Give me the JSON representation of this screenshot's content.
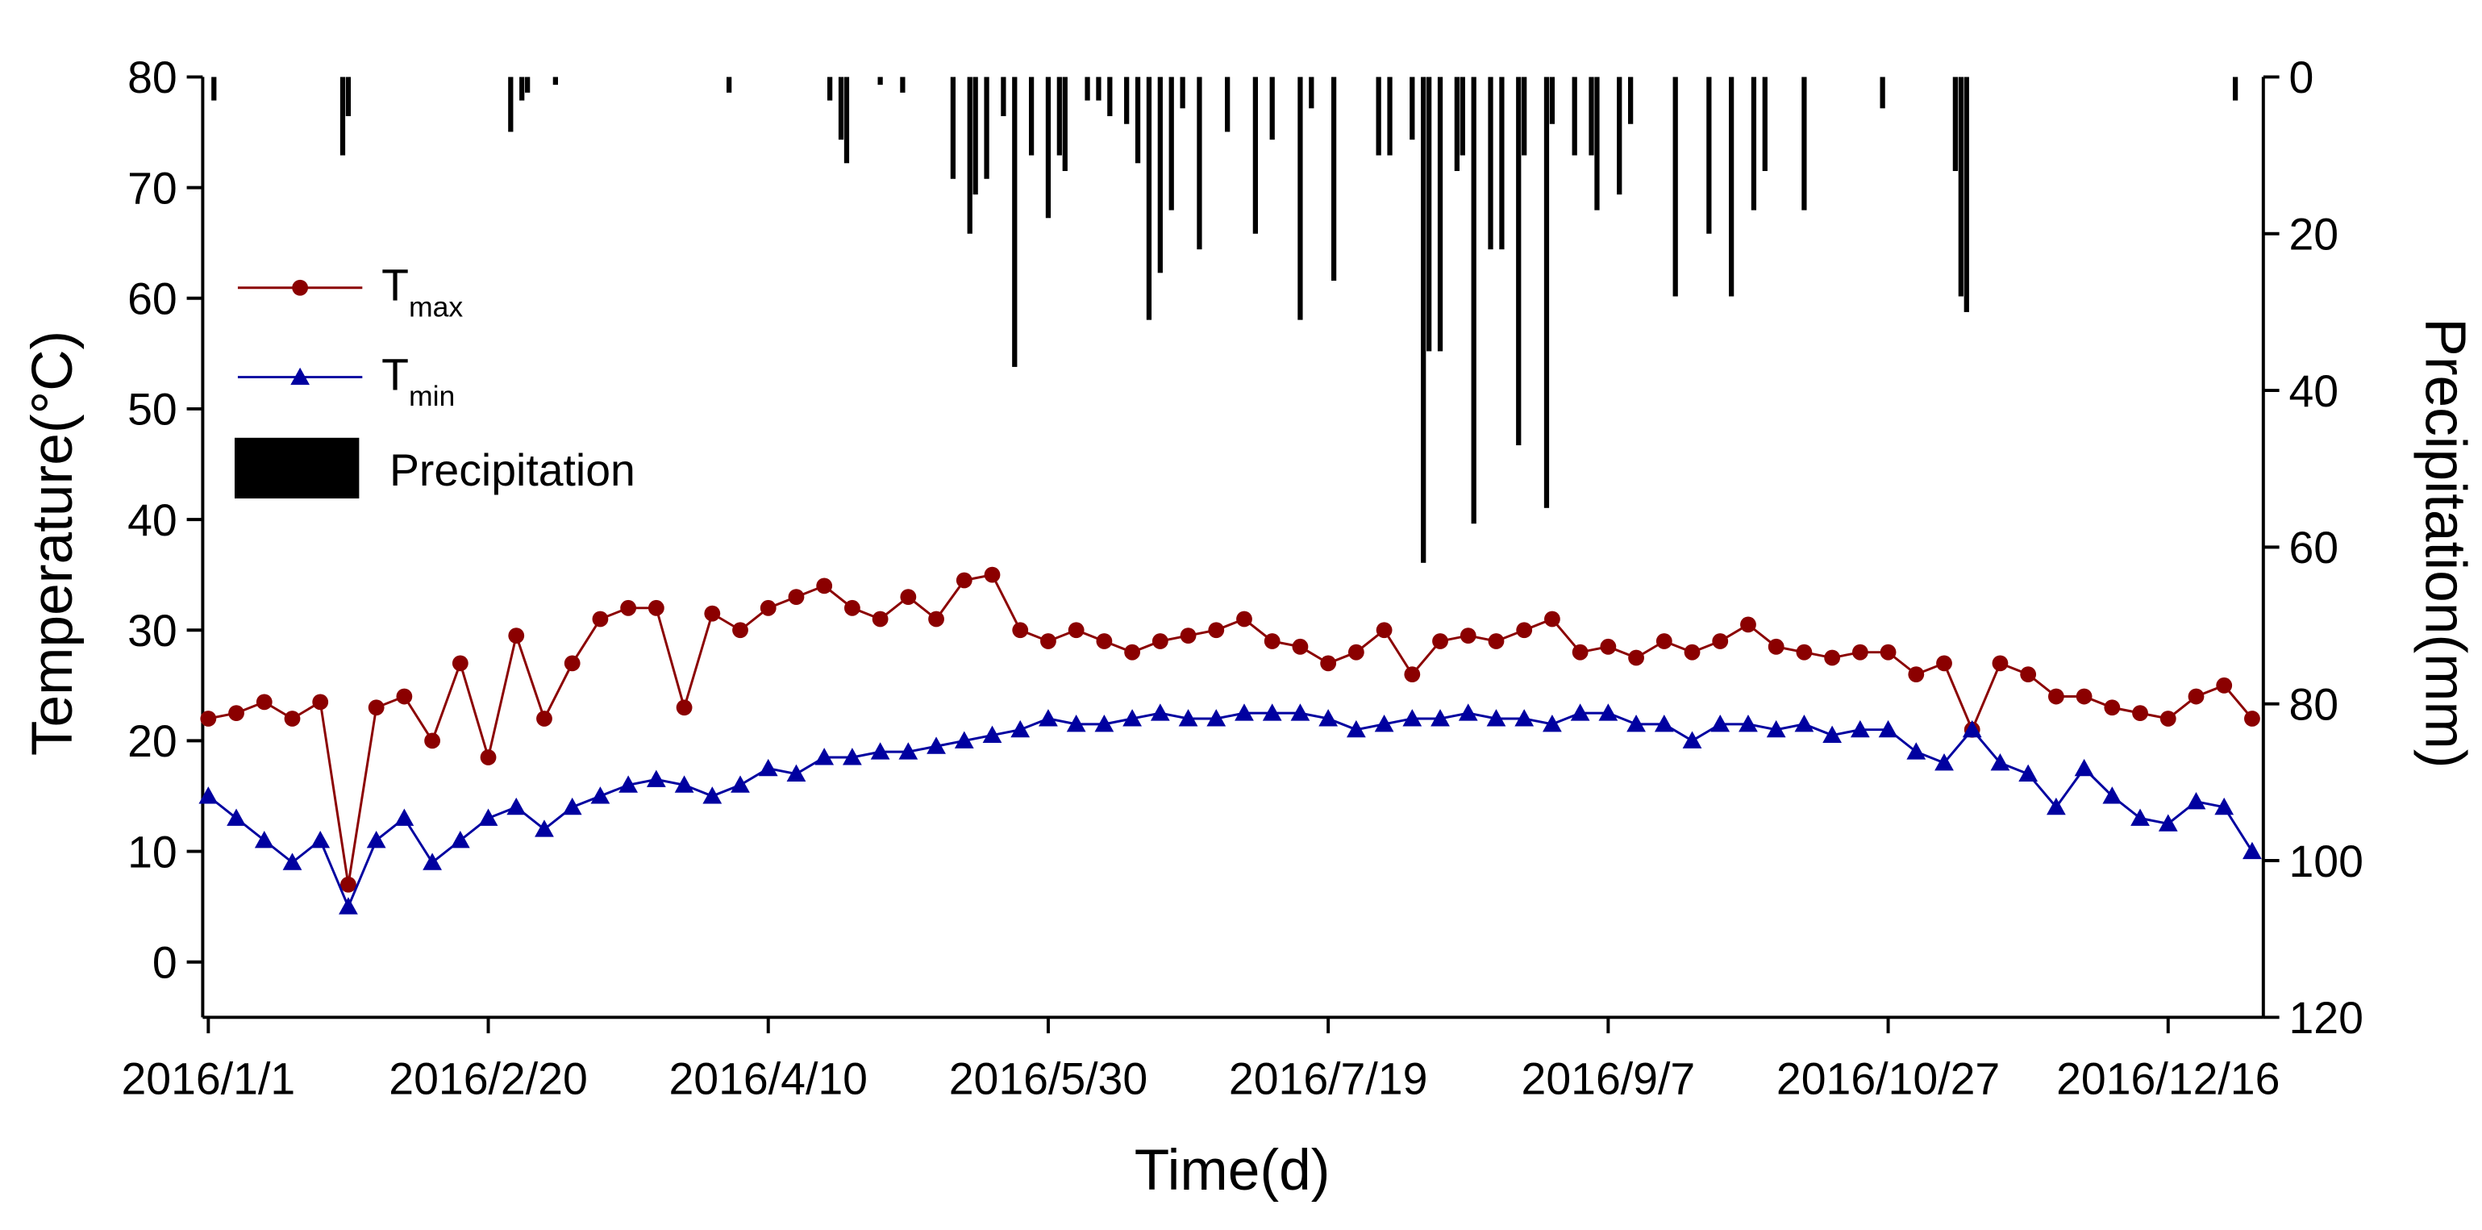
{
  "chart_data": {
    "type": "line",
    "x_label": "Time(d)",
    "y_label": "Temperature(°C)",
    "y2_label": "Precipitation(mm)",
    "xlim": [
      -1,
      367
    ],
    "xticks": [
      {
        "value": 0,
        "label": "2016/1/1"
      },
      {
        "value": 50,
        "label": "2016/2/20"
      },
      {
        "value": 100,
        "label": "2016/4/10"
      },
      {
        "value": 150,
        "label": "2016/5/30"
      },
      {
        "value": 200,
        "label": "2016/7/19"
      },
      {
        "value": 250,
        "label": "2016/9/7"
      },
      {
        "value": 300,
        "label": "2016/10/27"
      },
      {
        "value": 350,
        "label": "2016/12/16"
      }
    ],
    "ylim": [
      -5,
      80
    ],
    "yticks": [
      0,
      10,
      20,
      30,
      40,
      50,
      60,
      70,
      80
    ],
    "y2lim": [
      0,
      120
    ],
    "y2ticks": [
      0,
      20,
      40,
      60,
      80,
      100,
      120
    ],
    "y2_inverted": true,
    "legend": "upper left",
    "series": [
      {
        "name": "Tmax",
        "type": "line",
        "marker": "circle",
        "color": "#8b0000",
        "x": [
          0,
          5,
          10,
          15,
          20,
          25,
          30,
          35,
          40,
          45,
          50,
          55,
          60,
          65,
          70,
          75,
          80,
          85,
          90,
          95,
          100,
          105,
          110,
          115,
          120,
          125,
          130,
          135,
          140,
          145,
          150,
          155,
          160,
          165,
          170,
          175,
          180,
          185,
          190,
          195,
          200,
          205,
          210,
          215,
          220,
          225,
          230,
          235,
          240,
          245,
          250,
          255,
          260,
          265,
          270,
          275,
          280,
          285,
          290,
          295,
          300,
          305,
          310,
          315,
          320,
          325,
          330,
          335,
          340,
          345,
          350,
          355,
          360,
          365
        ],
        "values": [
          22,
          22.5,
          23.5,
          22,
          23.5,
          7,
          23,
          24,
          20,
          27,
          18.5,
          29.5,
          22,
          27,
          31,
          32,
          32,
          23,
          31.5,
          30,
          32,
          33,
          34,
          32,
          31,
          33,
          31,
          34.5,
          35,
          30,
          29,
          30,
          29,
          28,
          29,
          29.5,
          30,
          31,
          29,
          28.5,
          27,
          28,
          30,
          26,
          29,
          29.5,
          29,
          30,
          31,
          28,
          28.5,
          27.5,
          29,
          28,
          29,
          30.5,
          28.5,
          28,
          27.5,
          28,
          28,
          26,
          27,
          21,
          27,
          26,
          24,
          24,
          23,
          22.5,
          22,
          24,
          25,
          22
        ]
      },
      {
        "name": "Tmin",
        "type": "line",
        "marker": "triangle",
        "color": "#0000a0",
        "x": [
          0,
          5,
          10,
          15,
          20,
          25,
          30,
          35,
          40,
          45,
          50,
          55,
          60,
          65,
          70,
          75,
          80,
          85,
          90,
          95,
          100,
          105,
          110,
          115,
          120,
          125,
          130,
          135,
          140,
          145,
          150,
          155,
          160,
          165,
          170,
          175,
          180,
          185,
          190,
          195,
          200,
          205,
          210,
          215,
          220,
          225,
          230,
          235,
          240,
          245,
          250,
          255,
          260,
          265,
          270,
          275,
          280,
          285,
          290,
          295,
          300,
          305,
          310,
          315,
          320,
          325,
          330,
          335,
          340,
          345,
          350,
          355,
          360,
          365
        ],
        "values": [
          15,
          13,
          11,
          9,
          11,
          5,
          11,
          13,
          9,
          11,
          13,
          14,
          12,
          14,
          15,
          16,
          16.5,
          16,
          15,
          16,
          17.5,
          17,
          18.5,
          18.5,
          19,
          19,
          19.5,
          20,
          20.5,
          21,
          22,
          21.5,
          21.5,
          22,
          22.5,
          22,
          22,
          22.5,
          22.5,
          22.5,
          22,
          21,
          21.5,
          22,
          22,
          22.5,
          22,
          22,
          21.5,
          22.5,
          22.5,
          21.5,
          21.5,
          20,
          21.5,
          21.5,
          21,
          21.5,
          20.5,
          21,
          21,
          19,
          18,
          21,
          18,
          17,
          14,
          17.5,
          15,
          13,
          12.5,
          14.5,
          14,
          10
        ]
      },
      {
        "name": "Precipitation",
        "type": "bar",
        "axis": "y2",
        "color": "#000000",
        "x": [
          1,
          24,
          25,
          54,
          56,
          57,
          62,
          93,
          111,
          113,
          114,
          120,
          124,
          133,
          136,
          137,
          139,
          142,
          144,
          147,
          150,
          152,
          153,
          157,
          159,
          161,
          164,
          166,
          168,
          170,
          172,
          174,
          177,
          182,
          187,
          190,
          195,
          197,
          201,
          209,
          211,
          215,
          217,
          218,
          220,
          223,
          224,
          226,
          229,
          231,
          234,
          235,
          239,
          240,
          244,
          247,
          248,
          252,
          254,
          262,
          268,
          272,
          276,
          278,
          285,
          299,
          312,
          313,
          314,
          362
        ],
        "values": [
          3,
          10,
          5,
          7,
          3,
          2,
          1,
          2,
          3,
          8,
          11,
          1,
          2,
          13,
          20,
          15,
          13,
          5,
          37,
          10,
          18,
          10,
          12,
          3,
          3,
          5,
          6,
          11,
          31,
          25,
          17,
          4,
          22,
          7,
          20,
          8,
          31,
          4,
          26,
          10,
          10,
          8,
          62,
          35,
          35,
          12,
          10,
          57,
          22,
          22,
          47,
          10,
          55,
          6,
          10,
          10,
          17,
          15,
          6,
          28,
          20,
          28,
          17,
          12,
          17,
          4,
          12,
          28,
          30,
          3
        ]
      }
    ]
  }
}
